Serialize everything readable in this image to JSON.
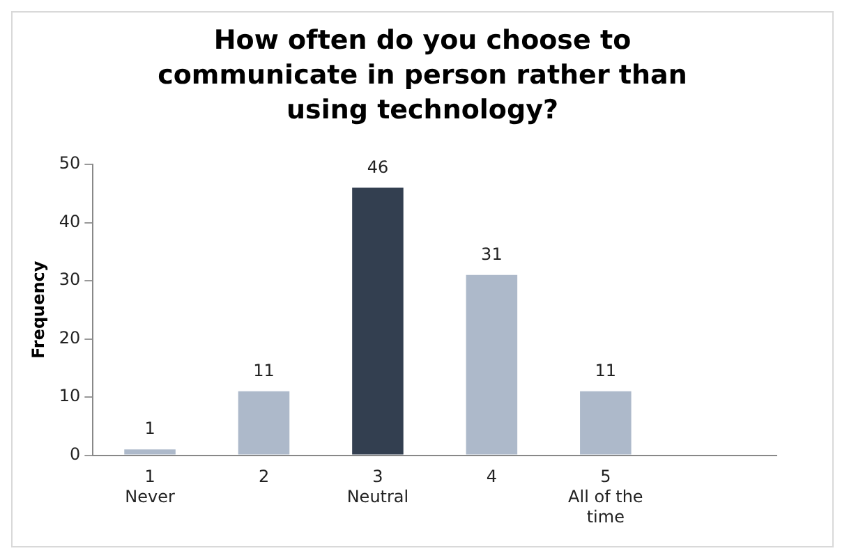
{
  "chart_data": {
    "type": "bar",
    "title": "How often do you choose to communicate in person rather than using technology?",
    "ylabel": "Frequency",
    "categories": [
      "1\nNever",
      "2",
      "3\nNeutral",
      "4",
      "5\nAll of the\ntime",
      null
    ],
    "values": [
      1,
      11,
      46,
      31,
      11,
      null
    ],
    "colors": [
      "#adb9ca",
      "#adb9ca",
      "#333f50",
      "#adb9ca",
      "#adb9ca",
      "#adb9ca"
    ],
    "ylim": [
      0,
      50
    ],
    "yticks": [
      0,
      10,
      20,
      30,
      40,
      50
    ],
    "grid": false,
    "legend": false,
    "data_labels": true
  }
}
